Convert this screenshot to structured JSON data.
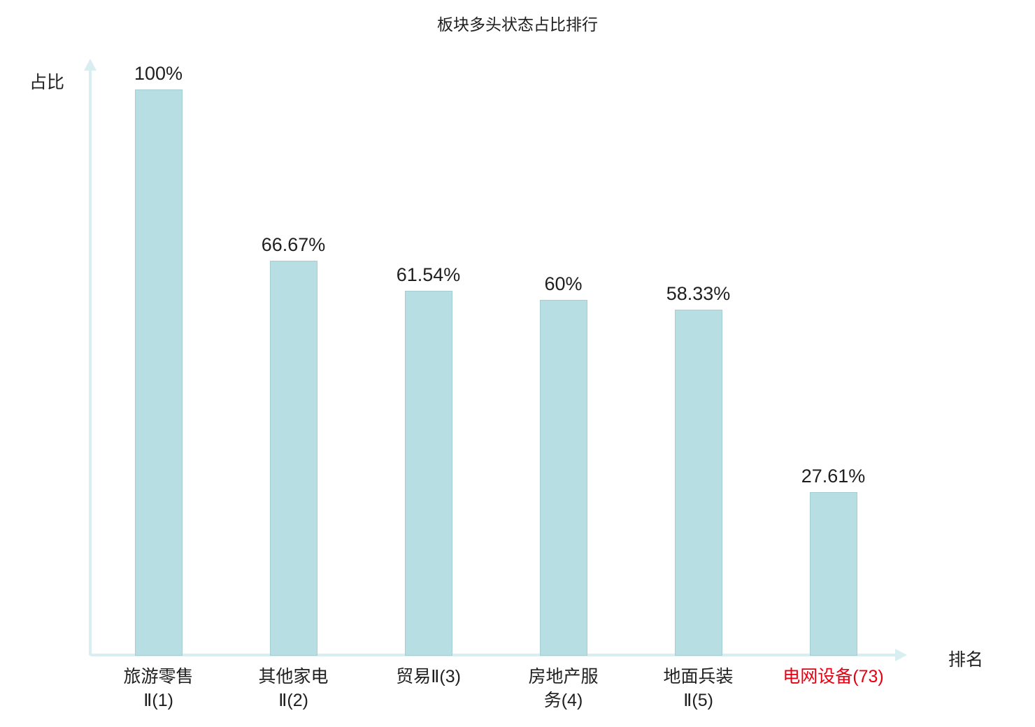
{
  "chart_data": {
    "type": "bar",
    "title": "板块多头状态占比排行",
    "xlabel": "排名",
    "ylabel": "占比",
    "ylim": [
      0,
      100
    ],
    "grid": false,
    "legend": "none",
    "categories": [
      "旅游零售Ⅱ(1)",
      "其他家电Ⅱ(2)",
      "贸易Ⅱ(3)",
      "房地产服务(4)",
      "地面兵装Ⅱ(5)",
      "电网设备(73)"
    ],
    "category_display": [
      "旅游零售\nⅡ(1)",
      "其他家电\nⅡ(2)",
      "贸易Ⅱ(3)",
      "房地产服\n务(4)",
      "地面兵装\nⅡ(5)",
      "电网设备(73)"
    ],
    "values": [
      100,
      66.67,
      61.54,
      60,
      58.33,
      27.61
    ],
    "value_labels": [
      "100%",
      "66.67%",
      "61.54%",
      "60%",
      "58.33%",
      "27.61%"
    ],
    "highlight_index": 5,
    "colors": {
      "bar_fill": "#b7dee3",
      "bar_border": "#a3ced4",
      "axis": "#d9eef1",
      "text": "#1f1f1f",
      "highlight_text": "#e60012"
    }
  }
}
